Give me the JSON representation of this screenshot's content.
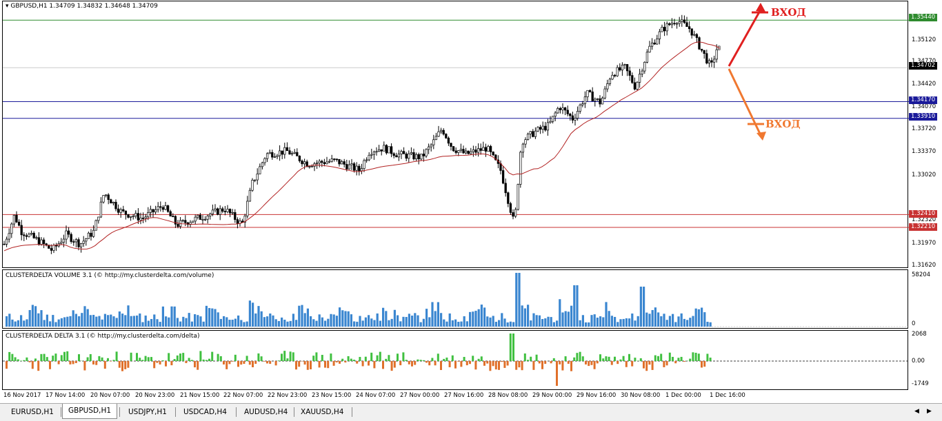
{
  "chart": {
    "header_text": "GBPUSD,H1  1.34709 1.34832 1.34648 1.34709",
    "price_scale": [
      "1.35120",
      "1.34770",
      "1.34420",
      "1.34070",
      "1.33720",
      "1.33370",
      "1.33020",
      "1.32320",
      "1.31970",
      "1.31620"
    ],
    "tags": {
      "green": "1.35440",
      "current": "1.34702",
      "blue1": "1.34170",
      "blue2": "1.33910",
      "red1": "1.32410",
      "red2": "1.32210"
    },
    "colors": {
      "green": "#2e8b2e",
      "blue": "#1a1a9a",
      "red": "#c83232",
      "ma": "#b22222",
      "entry_up": "#e02020",
      "entry_down": "#f07830",
      "vol": "#3a86d0",
      "delta_pos": "#40c040",
      "delta_neg": "#e0702a"
    },
    "annotations": {
      "entry_up": "ВХОД",
      "entry_down": "ВХОД"
    }
  },
  "volume": {
    "header_text": "CLUSTERDELTA VOLUME 3.1 (© http://my.clusterdelta.com/volume)",
    "scale_top": "58204",
    "scale_bottom": "0"
  },
  "delta": {
    "header_text": "CLUSTERDELTA DELTA 3.1 (© http://my.clusterdelta.com/delta)",
    "scale_top": "2068",
    "scale_mid": "0.00",
    "scale_bottom": "-1749"
  },
  "time_axis": [
    "16 Nov 2017",
    "17 Nov 14:00",
    "20 Nov 07:00",
    "20 Nov 23:00",
    "21 Nov 15:00",
    "22 Nov 07:00",
    "22 Nov 23:00",
    "23 Nov 15:00",
    "24 Nov 07:00",
    "27 Nov 00:00",
    "27 Nov 16:00",
    "28 Nov 08:00",
    "29 Nov 00:00",
    "29 Nov 16:00",
    "30 Nov 08:00",
    "1 Dec 00:00",
    "1 Dec 16:00"
  ],
  "tabs": [
    "EURUSD,H1",
    "GBPUSD,H1",
    "USDJPY,H1",
    "USDCAD,H4",
    "AUDUSD,H4",
    "XAUUSD,H4"
  ],
  "active_tab": "GBPUSD,H1"
}
